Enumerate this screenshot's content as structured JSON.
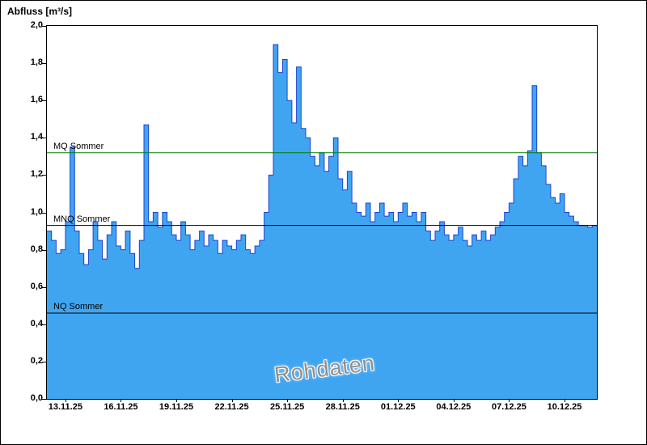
{
  "page": {
    "title": "Abfluss [m³/s]",
    "watermark": "Rohdaten"
  },
  "chart_data": {
    "type": "area",
    "title": "Abfluss [m³/s]",
    "ylabel": "Abfluss [m³/s]",
    "xlabel": "",
    "ylim": [
      0,
      2
    ],
    "grid": false,
    "legend": "none",
    "ytick_values": [
      0,
      0.2,
      0.4,
      0.6,
      0.8,
      1.0,
      1.2,
      1.4,
      1.6,
      1.8,
      2.0
    ],
    "ytick_labels": [
      "0,0",
      "0,2",
      "0,4",
      "0,6",
      "0,8",
      "1,0",
      "1,2",
      "1,4",
      "1,6",
      "1,8",
      "2,0"
    ],
    "xtick_labels": [
      "13.11.25",
      "16.11.25",
      "19.11.25",
      "22.11.25",
      "25.11.25",
      "28.11.25",
      "01.12.25",
      "04.12.25",
      "07.12.25",
      "10.12.25"
    ],
    "xtick_day_offsets": [
      1,
      4,
      7,
      10,
      13,
      16,
      19,
      22,
      25,
      28
    ],
    "points_per_day": 4,
    "reference_lines": [
      {
        "label": "MQ Sommer",
        "value": 1.32,
        "color": "#008000"
      },
      {
        "label": "MNQ Sommer",
        "value": 0.93,
        "color": "#000000"
      },
      {
        "label": "NQ Sommer",
        "value": 0.46,
        "color": "#000000"
      }
    ],
    "series": [
      {
        "name": "Rohdaten",
        "unit": "m³/s",
        "fill": "#3FA5F1",
        "stroke": "#2143CE",
        "values": [
          0.9,
          0.85,
          0.78,
          0.8,
          0.95,
          1.35,
          0.9,
          0.78,
          0.72,
          0.8,
          0.95,
          0.85,
          0.75,
          0.88,
          0.95,
          0.82,
          0.8,
          0.9,
          0.78,
          0.7,
          0.85,
          1.47,
          0.95,
          1.0,
          0.92,
          1.0,
          0.95,
          0.88,
          0.85,
          0.95,
          0.88,
          0.8,
          0.85,
          0.9,
          0.82,
          0.88,
          0.85,
          0.78,
          0.85,
          0.82,
          0.8,
          0.85,
          0.88,
          0.8,
          0.78,
          0.82,
          0.85,
          1.0,
          1.2,
          1.9,
          1.75,
          1.82,
          1.6,
          1.48,
          1.78,
          1.45,
          1.4,
          1.3,
          1.25,
          1.32,
          1.22,
          1.3,
          1.4,
          1.18,
          1.12,
          1.22,
          1.05,
          1.0,
          0.98,
          1.05,
          0.95,
          1.0,
          1.05,
          0.98,
          1.0,
          0.95,
          1.0,
          1.05,
          0.98,
          1.0,
          0.95,
          1.0,
          0.9,
          0.85,
          0.9,
          0.95,
          0.88,
          0.85,
          0.88,
          0.92,
          0.85,
          0.82,
          0.88,
          0.85,
          0.9,
          0.85,
          0.88,
          0.92,
          0.95,
          1.0,
          1.05,
          1.18,
          1.3,
          1.25,
          1.33,
          1.68,
          1.32,
          1.25,
          1.15,
          1.08,
          1.05,
          1.1,
          1.0,
          0.98,
          0.95,
          0.93,
          0.93,
          0.92,
          0.93,
          0.93
        ]
      }
    ]
  }
}
